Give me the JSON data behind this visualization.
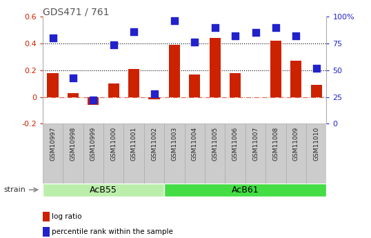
{
  "title": "GDS471 / 761",
  "samples": [
    "GSM10997",
    "GSM10998",
    "GSM10999",
    "GSM11000",
    "GSM11001",
    "GSM11002",
    "GSM11003",
    "GSM11004",
    "GSM11005",
    "GSM11006",
    "GSM11007",
    "GSM11008",
    "GSM11009",
    "GSM11010"
  ],
  "log_ratio": [
    0.18,
    0.03,
    -0.06,
    0.1,
    0.21,
    -0.02,
    0.39,
    0.17,
    0.44,
    0.18,
    0.0,
    0.42,
    0.27,
    0.09
  ],
  "percentile_rank": [
    80,
    43,
    22,
    74,
    86,
    28,
    96,
    76,
    90,
    82,
    85,
    90,
    82,
    52
  ],
  "bar_color": "#cc2200",
  "dot_color": "#2222cc",
  "ylim_left": [
    -0.2,
    0.6
  ],
  "ylim_right": [
    0,
    100
  ],
  "yticks_left": [
    -0.2,
    0.0,
    0.2,
    0.4,
    0.6
  ],
  "ytick_labels_right": [
    "0",
    "25",
    "50",
    "75",
    "100%"
  ],
  "groups": [
    {
      "label": "AcB55",
      "start": 0,
      "end": 6,
      "color": "#bbeeaa"
    },
    {
      "label": "AcB61",
      "start": 6,
      "end": 14,
      "color": "#44dd44"
    }
  ],
  "strain_label": "strain",
  "legend_items": [
    {
      "label": "log ratio",
      "color": "#cc2200"
    },
    {
      "label": "percentile rank within the sample",
      "color": "#2222cc"
    }
  ],
  "bg_color": "#ffffff",
  "bar_width": 0.55,
  "dot_size": 45,
  "title_color": "#555555",
  "label_bg": "#cccccc",
  "label_border": "#aaaaaa"
}
